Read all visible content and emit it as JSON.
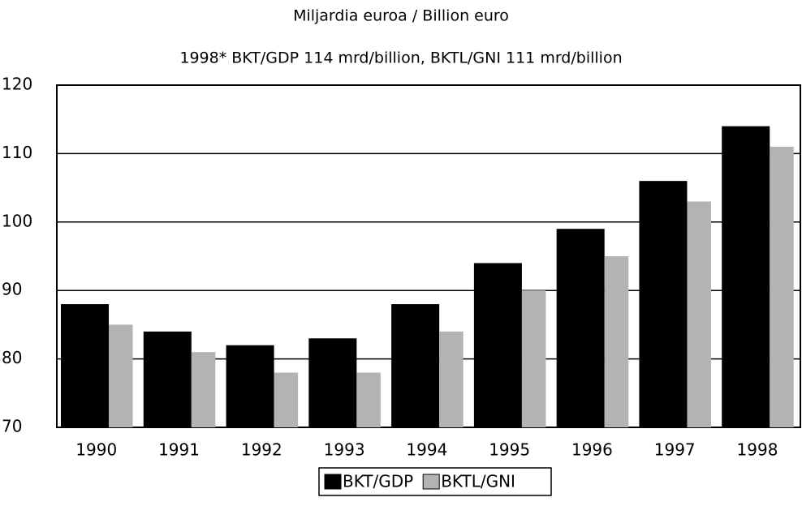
{
  "chart_data": {
    "type": "bar",
    "title": "Miljardia euroa / Billion euro",
    "subtitle": "1998* BKT/GDP 114  mrd/billion, BKTL/GNI 111 mrd/billion",
    "categories": [
      "1990",
      "1991",
      "1992",
      "1993",
      "1994",
      "1995",
      "1996",
      "1997",
      "1998"
    ],
    "series": [
      {
        "name": "BKT/GDP",
        "color": "#000000",
        "values": [
          88,
          84,
          82,
          83,
          88,
          94,
          99,
          106,
          114
        ]
      },
      {
        "name": "BKTL/GNI",
        "color": "#b3b3b3",
        "values": [
          85,
          81,
          78,
          78,
          84,
          90,
          95,
          103,
          111
        ]
      }
    ],
    "ylim": [
      70,
      120
    ],
    "yticks": [
      70,
      80,
      90,
      100,
      110,
      120
    ],
    "grid": true,
    "legend": "bottom"
  }
}
